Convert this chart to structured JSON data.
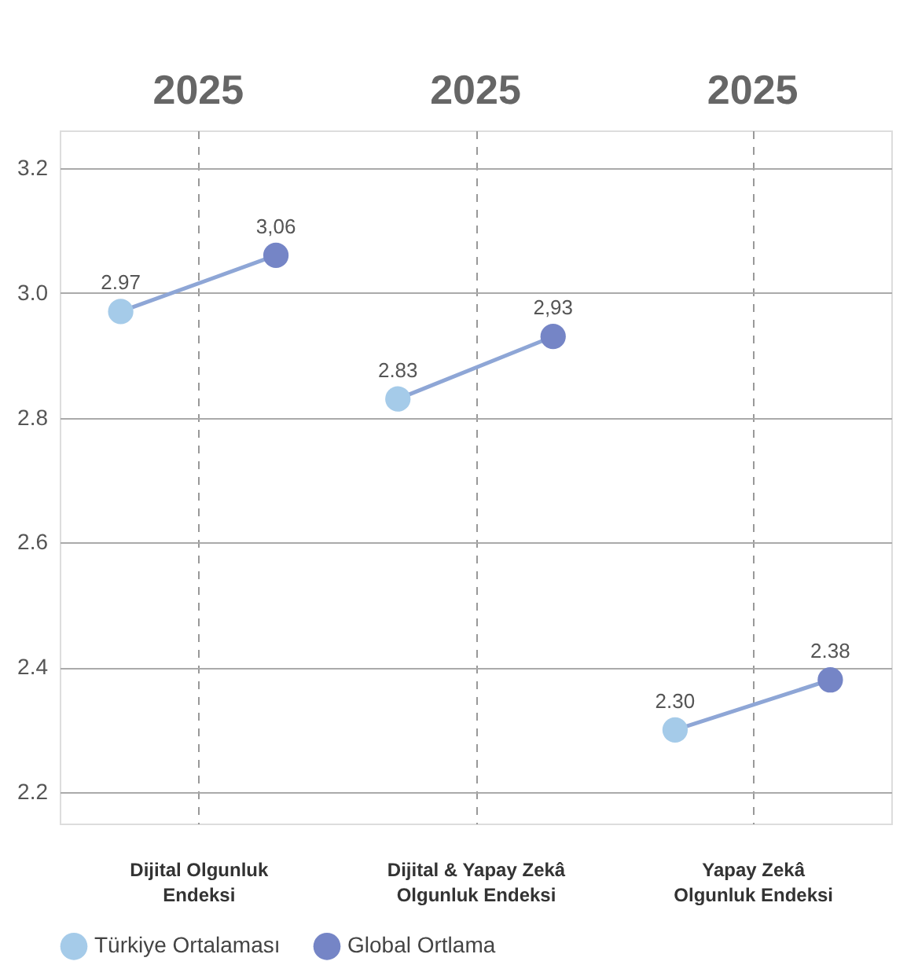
{
  "chart_data": {
    "type": "scatter",
    "categories": [
      "Dijital Olgunluk Endeksi",
      "Dijital & Yapay Zekâ Olgunluk Endeksi",
      "Yapay Zekâ Olgunluk Endeksi"
    ],
    "annotations": [
      "2025",
      "2025",
      "2025"
    ],
    "series": [
      {
        "name": "Türkiye Ortalaması",
        "color": "#a5cbe9",
        "values": [
          2.97,
          2.83,
          2.3
        ],
        "value_labels": [
          "2.97",
          "2.83",
          "2.30"
        ]
      },
      {
        "name": "Global Ortlama",
        "color": "#7585c6",
        "values": [
          3.06,
          2.93,
          2.38
        ],
        "value_labels": [
          "3,06",
          "2,93",
          "2.38"
        ]
      }
    ],
    "ylim": [
      2.15,
      3.26
    ],
    "yticks": [
      2.2,
      2.4,
      2.6,
      2.8,
      {
        "value": 3.0,
        "label": "3.0"
      },
      3.2
    ],
    "grid": true,
    "legend": "bottom",
    "marker": "circle"
  }
}
